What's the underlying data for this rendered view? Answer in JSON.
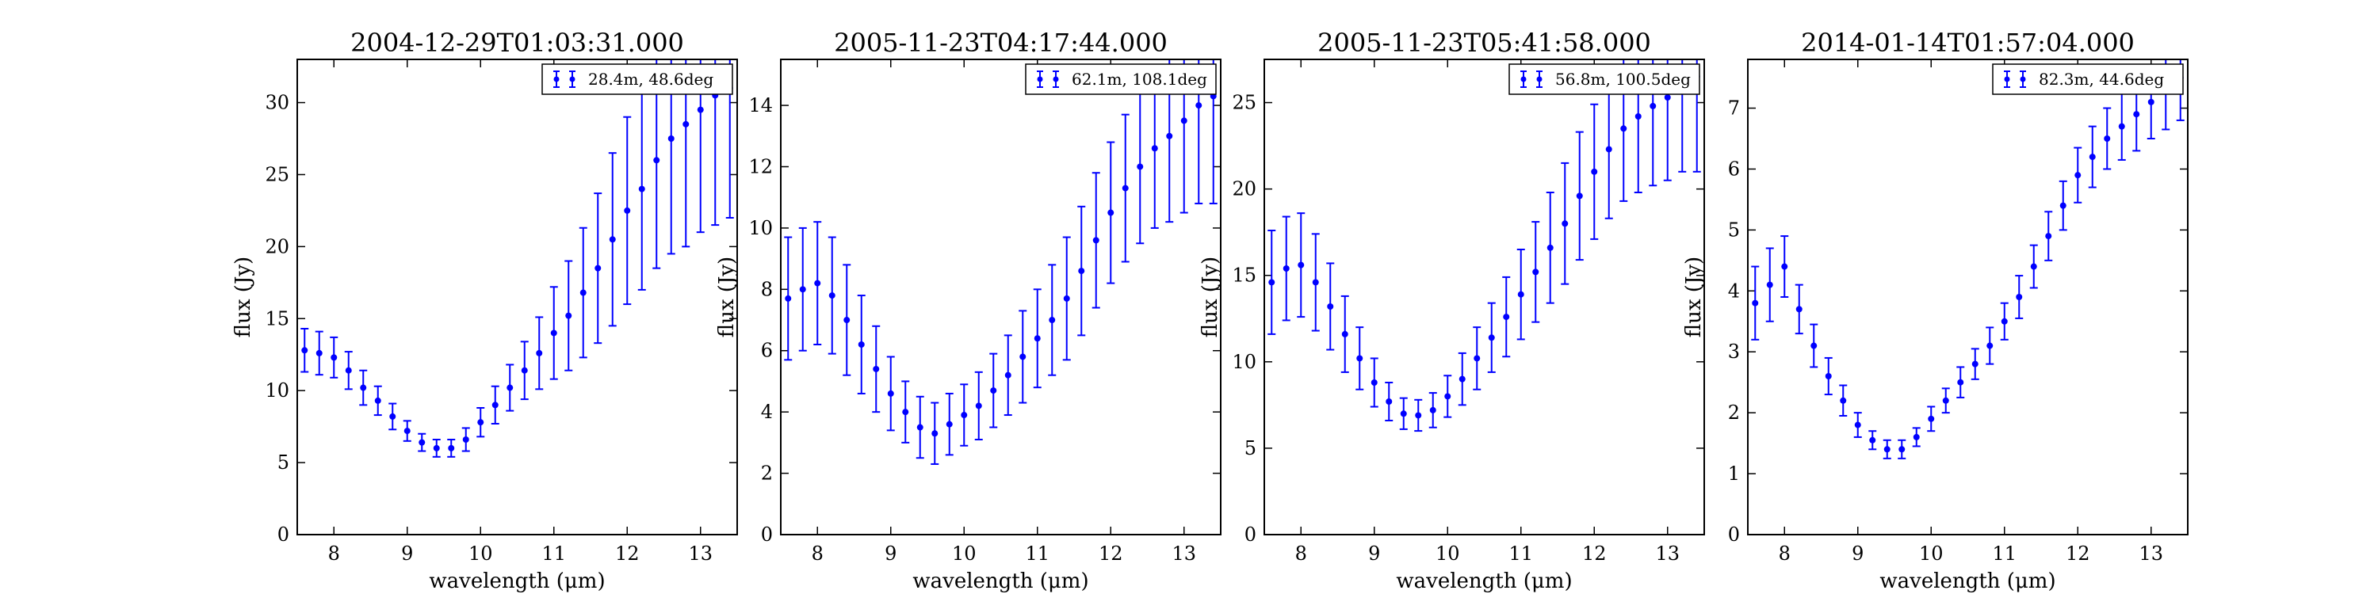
{
  "figure": {
    "colors": {
      "series": "#0000ff",
      "axes": "#000000",
      "background": "#ffffff"
    }
  },
  "chart_data": [
    {
      "type": "scatter",
      "title": "2004-12-29T01:03:31.000",
      "xlabel": "wavelength (μm)",
      "ylabel": "flux (Jy)",
      "xlim": [
        7.5,
        13.5
      ],
      "ylim": [
        0,
        33
      ],
      "xticks": [
        8,
        9,
        10,
        11,
        12,
        13
      ],
      "yticks": [
        0,
        5,
        10,
        15,
        20,
        25,
        30
      ],
      "grid": false,
      "legend_position": "top-right",
      "series": [
        {
          "name": "28.4m, 48.6deg",
          "error_bars": true,
          "x": [
            7.6,
            7.8,
            8.0,
            8.2,
            8.4,
            8.6,
            8.8,
            9.0,
            9.2,
            9.4,
            9.6,
            9.8,
            10.0,
            10.2,
            10.4,
            10.6,
            10.8,
            11.0,
            11.2,
            11.4,
            11.6,
            11.8,
            12.0,
            12.2,
            12.4,
            12.6,
            12.8,
            13.0,
            13.2,
            13.4
          ],
          "y": [
            12.8,
            12.6,
            12.3,
            11.4,
            10.2,
            9.3,
            8.2,
            7.2,
            6.4,
            6.0,
            6.0,
            6.6,
            7.8,
            9.0,
            10.2,
            11.4,
            12.6,
            14.0,
            15.2,
            16.8,
            18.5,
            20.5,
            22.5,
            24.0,
            26.0,
            27.5,
            28.5,
            29.5,
            30.5,
            31.0
          ],
          "err": [
            1.5,
            1.5,
            1.4,
            1.3,
            1.2,
            1.0,
            0.9,
            0.7,
            0.6,
            0.6,
            0.6,
            0.8,
            1.0,
            1.3,
            1.6,
            2.0,
            2.5,
            3.2,
            3.8,
            4.5,
            5.2,
            6.0,
            6.5,
            7.0,
            7.5,
            8.0,
            8.5,
            8.5,
            9.0,
            9.0
          ]
        }
      ]
    },
    {
      "type": "scatter",
      "title": "2005-11-23T04:17:44.000",
      "xlabel": "wavelength (μm)",
      "ylabel": "flux (Jy)",
      "xlim": [
        7.5,
        13.5
      ],
      "ylim": [
        0,
        15.5
      ],
      "xticks": [
        8,
        9,
        10,
        11,
        12,
        13
      ],
      "yticks": [
        0,
        2,
        4,
        6,
        8,
        10,
        12,
        14
      ],
      "grid": false,
      "legend_position": "top-right",
      "series": [
        {
          "name": "62.1m, 108.1deg",
          "error_bars": true,
          "x": [
            7.6,
            7.8,
            8.0,
            8.2,
            8.4,
            8.6,
            8.8,
            9.0,
            9.2,
            9.4,
            9.6,
            9.8,
            10.0,
            10.2,
            10.4,
            10.6,
            10.8,
            11.0,
            11.2,
            11.4,
            11.6,
            11.8,
            12.0,
            12.2,
            12.4,
            12.6,
            12.8,
            13.0,
            13.2,
            13.4
          ],
          "y": [
            7.7,
            8.0,
            8.2,
            7.8,
            7.0,
            6.2,
            5.4,
            4.6,
            4.0,
            3.5,
            3.3,
            3.6,
            3.9,
            4.2,
            4.7,
            5.2,
            5.8,
            6.4,
            7.0,
            7.7,
            8.6,
            9.6,
            10.5,
            11.3,
            12.0,
            12.6,
            13.0,
            13.5,
            14.0,
            14.3
          ],
          "err": [
            2.0,
            2.0,
            2.0,
            1.9,
            1.8,
            1.6,
            1.4,
            1.2,
            1.0,
            1.0,
            1.0,
            1.0,
            1.0,
            1.1,
            1.2,
            1.3,
            1.5,
            1.6,
            1.8,
            2.0,
            2.1,
            2.2,
            2.3,
            2.4,
            2.5,
            2.6,
            2.8,
            3.0,
            3.2,
            3.5
          ]
        }
      ]
    },
    {
      "type": "scatter",
      "title": "2005-11-23T05:41:58.000",
      "xlabel": "wavelength (μm)",
      "ylabel": "flux (Jy)",
      "xlim": [
        7.5,
        13.5
      ],
      "ylim": [
        0,
        27.5
      ],
      "xticks": [
        8,
        9,
        10,
        11,
        12,
        13
      ],
      "yticks": [
        0,
        5,
        10,
        15,
        20,
        25
      ],
      "grid": false,
      "legend_position": "top-right",
      "series": [
        {
          "name": "56.8m, 100.5deg",
          "error_bars": true,
          "x": [
            7.6,
            7.8,
            8.0,
            8.2,
            8.4,
            8.6,
            8.8,
            9.0,
            9.2,
            9.4,
            9.6,
            9.8,
            10.0,
            10.2,
            10.4,
            10.6,
            10.8,
            11.0,
            11.2,
            11.4,
            11.6,
            11.8,
            12.0,
            12.2,
            12.4,
            12.6,
            12.8,
            13.0,
            13.2,
            13.4
          ],
          "y": [
            14.6,
            15.4,
            15.6,
            14.6,
            13.2,
            11.6,
            10.2,
            8.8,
            7.7,
            7.0,
            6.9,
            7.2,
            8.0,
            9.0,
            10.2,
            11.4,
            12.6,
            13.9,
            15.2,
            16.6,
            18.0,
            19.6,
            21.0,
            22.3,
            23.5,
            24.2,
            24.8,
            25.3,
            26.0,
            26.5
          ],
          "err": [
            3.0,
            3.0,
            3.0,
            2.8,
            2.5,
            2.2,
            1.8,
            1.4,
            1.1,
            0.9,
            0.9,
            1.0,
            1.2,
            1.5,
            1.8,
            2.0,
            2.3,
            2.6,
            2.9,
            3.2,
            3.5,
            3.7,
            3.9,
            4.0,
            4.2,
            4.4,
            4.6,
            4.8,
            5.0,
            5.5
          ]
        }
      ]
    },
    {
      "type": "scatter",
      "title": "2014-01-14T01:57:04.000",
      "xlabel": "wavelength (μm)",
      "ylabel": "flux (Jy)",
      "xlim": [
        7.5,
        13.5
      ],
      "ylim": [
        0,
        7.8
      ],
      "xticks": [
        8,
        9,
        10,
        11,
        12,
        13
      ],
      "yticks": [
        0,
        1,
        2,
        3,
        4,
        5,
        6,
        7
      ],
      "grid": false,
      "legend_position": "top-right",
      "series": [
        {
          "name": "82.3m, 44.6deg",
          "error_bars": true,
          "x": [
            7.6,
            7.8,
            8.0,
            8.2,
            8.4,
            8.6,
            8.8,
            9.0,
            9.2,
            9.4,
            9.6,
            9.8,
            10.0,
            10.2,
            10.4,
            10.6,
            10.8,
            11.0,
            11.2,
            11.4,
            11.6,
            11.8,
            12.0,
            12.2,
            12.4,
            12.6,
            12.8,
            13.0,
            13.2,
            13.4
          ],
          "y": [
            3.8,
            4.1,
            4.4,
            3.7,
            3.1,
            2.6,
            2.2,
            1.8,
            1.55,
            1.4,
            1.4,
            1.6,
            1.9,
            2.2,
            2.5,
            2.8,
            3.1,
            3.5,
            3.9,
            4.4,
            4.9,
            5.4,
            5.9,
            6.2,
            6.5,
            6.7,
            6.9,
            7.1,
            7.3,
            7.5
          ],
          "err": [
            0.6,
            0.6,
            0.5,
            0.4,
            0.35,
            0.3,
            0.25,
            0.2,
            0.15,
            0.15,
            0.15,
            0.15,
            0.2,
            0.2,
            0.25,
            0.25,
            0.3,
            0.3,
            0.35,
            0.35,
            0.4,
            0.4,
            0.45,
            0.5,
            0.5,
            0.55,
            0.6,
            0.6,
            0.65,
            0.7
          ]
        }
      ]
    }
  ]
}
